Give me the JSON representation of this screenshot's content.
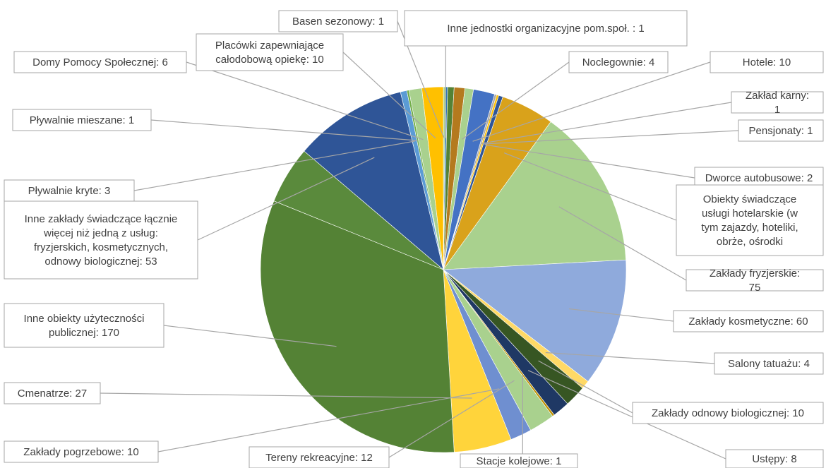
{
  "chart_data": {
    "type": "pie",
    "title": "",
    "slices": [
      {
        "label": "Basen sezonowy: 1",
        "value": 1,
        "color": "#A9D18E"
      },
      {
        "label": "Inne jednostki organizacyjne pom.społ. : 1",
        "value": 1,
        "color": "#2E75B6"
      },
      {
        "label": "",
        "value": 3,
        "color": "#548235"
      },
      {
        "label": "",
        "value": 5,
        "color": "#B47A1E"
      },
      {
        "label": "Noclegownie: 4",
        "value": 4,
        "color": "#A9D18E"
      },
      {
        "label": "Hotele: 10",
        "value": 10,
        "color": "#4472C4"
      },
      {
        "label": "Zakład karny: 1",
        "value": 1,
        "color": "#A9A9A9"
      },
      {
        "label": "Pensjonaty: 1",
        "value": 1,
        "color": "#FFC000"
      },
      {
        "label": "Dworce autobusowe: 2",
        "value": 2,
        "color": "#2F5597"
      },
      {
        "label": "Obiekty świadczące usługi hotelarskie (w tym zajazdy, hoteliki, obrże, ośrodki",
        "value": 25,
        "color": "#D9A21B"
      },
      {
        "label": "Zakłady fryzjerskie: 75",
        "value": 75,
        "color": "#A9D18E"
      },
      {
        "label": "Zakłady kosmetyczne: 60",
        "value": 60,
        "color": "#8FAADC"
      },
      {
        "label": "Salony tatuażu: 4",
        "value": 4,
        "color": "#FFD966"
      },
      {
        "label": "Zakłady odnowy biologicznej: 10",
        "value": 10,
        "color": "#375623"
      },
      {
        "label": "Ustępy: 8",
        "value": 8,
        "color": "#1F3864"
      },
      {
        "label": "Stacje kolejowe: 1",
        "value": 1,
        "color": "#BF9000"
      },
      {
        "label": "Tereny rekreacyjne: 12",
        "value": 12,
        "color": "#A9D18E"
      },
      {
        "label": "Zakłady pogrzebowe: 10",
        "value": 10,
        "color": "#6F8FD0"
      },
      {
        "label": "Cmenatrze: 27",
        "value": 27,
        "color": "#FFD43B"
      },
      {
        "label": "Inne obiekty użyteczności publicznej: 170",
        "value": 170,
        "color": "#548235"
      },
      {
        "label": "",
        "value": 27,
        "color": "#5A8A3C"
      },
      {
        "label": "Inne zakłady świadczące łącznie więcej niż jedną z usług: fryzjerskich, kosmetycznych, odnowy biologicznej: 53",
        "value": 53,
        "color": "#2F5597"
      },
      {
        "label": "Pływalnie kryte: 3",
        "value": 3,
        "color": "#5B9BD5"
      },
      {
        "label": "Pływalnie mieszane: 1",
        "value": 1,
        "color": "#70AD47"
      },
      {
        "label": "Domy Pomocy Społecznej: 6",
        "value": 6,
        "color": "#A9D18E"
      },
      {
        "label": "Placówki zapewniające całodobową opiekę: 10",
        "value": 10,
        "color": "#FFC000"
      }
    ]
  }
}
